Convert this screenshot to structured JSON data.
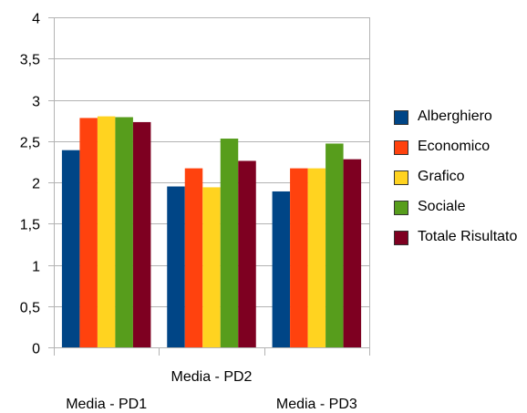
{
  "chart_data": {
    "type": "bar",
    "categories": [
      "Media - PD1",
      "Media - PD2",
      "Media - PD3"
    ],
    "series": [
      {
        "name": "Alberghiero",
        "color": "#004586",
        "values": [
          2.39,
          1.95,
          1.89
        ]
      },
      {
        "name": "Economico",
        "color": "#FF420E",
        "values": [
          2.78,
          2.17,
          2.17
        ]
      },
      {
        "name": "Grafico",
        "color": "#FFD320",
        "values": [
          2.8,
          1.94,
          2.17
        ]
      },
      {
        "name": "Sociale",
        "color": "#579D1C",
        "values": [
          2.79,
          2.53,
          2.47
        ]
      },
      {
        "name": "Totale Risul­tato",
        "color": "#7E0021",
        "values": [
          2.73,
          2.26,
          2.28
        ]
      }
    ],
    "y_ticks": [
      "0",
      "0,5",
      "1",
      "1,5",
      "2",
      "2,5",
      "3",
      "3,5",
      "4"
    ],
    "ylim": [
      0,
      4
    ],
    "grid": true,
    "legend_position": "right"
  }
}
